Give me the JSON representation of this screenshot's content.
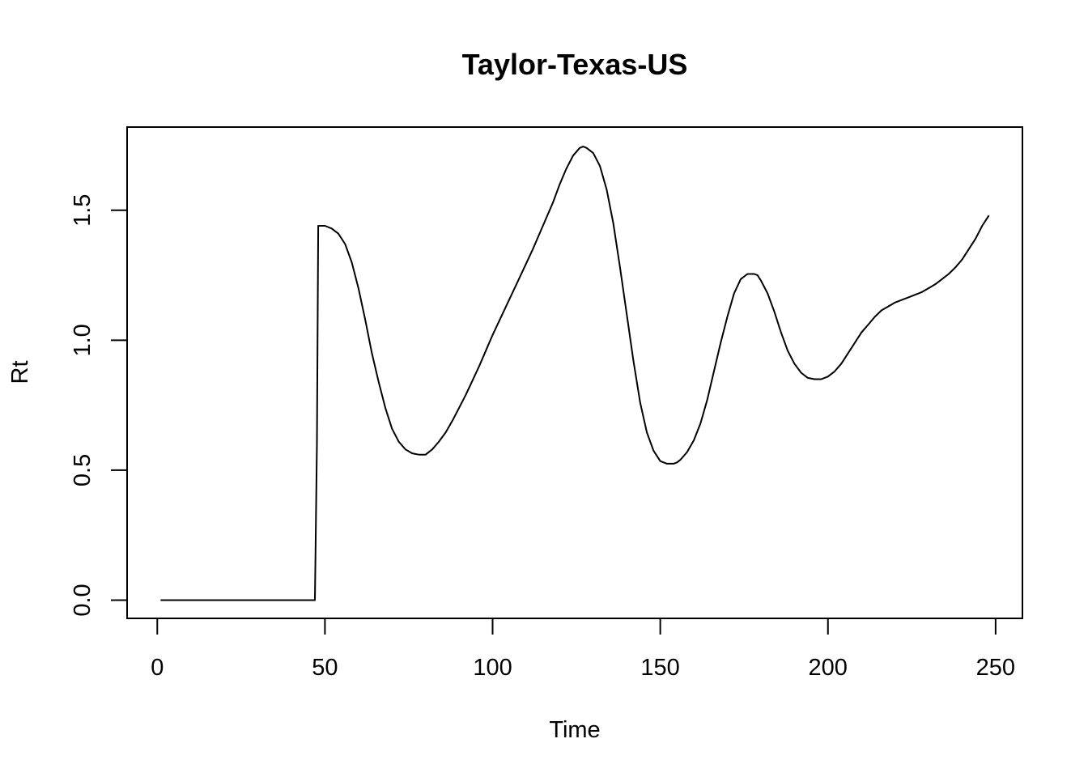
{
  "chart_data": {
    "type": "line",
    "title": "Taylor-Texas-US",
    "xlabel": "Time",
    "ylabel": "Rt",
    "xlim": [
      -9,
      258
    ],
    "ylim": [
      -0.07,
      1.82
    ],
    "x_ticks": [
      0,
      50,
      100,
      150,
      200,
      250
    ],
    "x_tick_labels": [
      "0",
      "50",
      "100",
      "150",
      "200",
      "250"
    ],
    "y_ticks": [
      0,
      0.5,
      1.0,
      1.5
    ],
    "y_tick_labels": [
      "0.0",
      "0.5",
      "1.0",
      "1.5"
    ],
    "grid": false,
    "series": [
      {
        "color": "#000000",
        "x": [
          1,
          10,
          20,
          30,
          40,
          47,
          47.6,
          48,
          50,
          52,
          54,
          56,
          58,
          60,
          62,
          64,
          66,
          68,
          70,
          72,
          74,
          76,
          78,
          80,
          82,
          84,
          86,
          88,
          90,
          92,
          94,
          96,
          98,
          100,
          104,
          108,
          112,
          116,
          118,
          120,
          122,
          124,
          126,
          127,
          128,
          130,
          132,
          134,
          136,
          138,
          140,
          142,
          144,
          146,
          148,
          150,
          152,
          154,
          155,
          156,
          158,
          160,
          162,
          164,
          166,
          168,
          170,
          172,
          174,
          176,
          178,
          179,
          180,
          182,
          184,
          186,
          188,
          190,
          192,
          194,
          196,
          198,
          200,
          202,
          204,
          206,
          208,
          210,
          212,
          214,
          216,
          218,
          220,
          222,
          224,
          226,
          228,
          230,
          232,
          234,
          236,
          238,
          240,
          242,
          244,
          246,
          248
        ],
        "y": [
          0,
          0,
          0,
          0,
          0,
          0,
          0.6,
          1.44,
          1.44,
          1.43,
          1.41,
          1.37,
          1.3,
          1.2,
          1.08,
          0.95,
          0.84,
          0.74,
          0.66,
          0.61,
          0.58,
          0.565,
          0.56,
          0.56,
          0.58,
          0.61,
          0.645,
          0.69,
          0.74,
          0.79,
          0.845,
          0.9,
          0.96,
          1.02,
          1.13,
          1.24,
          1.35,
          1.47,
          1.53,
          1.6,
          1.66,
          1.71,
          1.74,
          1.745,
          1.74,
          1.72,
          1.67,
          1.58,
          1.45,
          1.28,
          1.1,
          0.92,
          0.76,
          0.645,
          0.575,
          0.535,
          0.525,
          0.525,
          0.53,
          0.54,
          0.57,
          0.615,
          0.68,
          0.77,
          0.88,
          0.99,
          1.09,
          1.18,
          1.235,
          1.255,
          1.255,
          1.25,
          1.23,
          1.18,
          1.11,
          1.03,
          0.96,
          0.91,
          0.875,
          0.855,
          0.85,
          0.85,
          0.86,
          0.88,
          0.91,
          0.95,
          0.99,
          1.03,
          1.06,
          1.09,
          1.115,
          1.13,
          1.145,
          1.155,
          1.165,
          1.175,
          1.185,
          1.2,
          1.215,
          1.235,
          1.255,
          1.28,
          1.31,
          1.35,
          1.39,
          1.44,
          1.48
        ]
      }
    ]
  }
}
